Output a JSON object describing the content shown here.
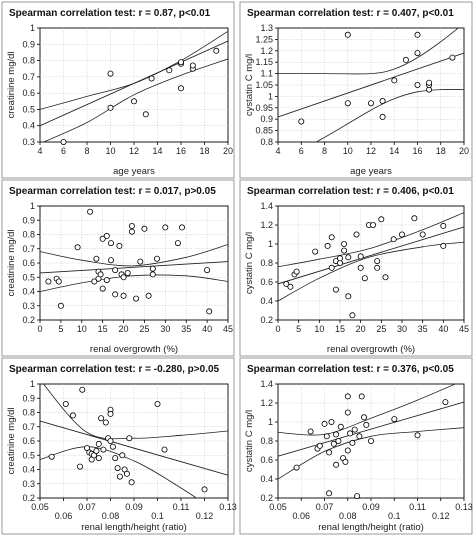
{
  "chart_data": [
    {
      "type": "scatter",
      "title": "Spearman correlation test: r = 0.87, p<0.01",
      "xlabel": "age years",
      "ylabel": "creatinine mg/dl",
      "xlim": [
        4,
        20
      ],
      "ylim": [
        0.3,
        1.0
      ],
      "xticks": [
        4,
        6,
        8,
        10,
        12,
        14,
        16,
        18,
        20
      ],
      "yticks": [
        0.3,
        0.4,
        0.5,
        0.6,
        0.7,
        0.8,
        0.9,
        1.0
      ],
      "grid": true,
      "series": [
        {
          "x": [
            6,
            10,
            10,
            12,
            13,
            13.5,
            15,
            16,
            16,
            16,
            17,
            17,
            19
          ],
          "y": [
            0.3,
            0.51,
            0.72,
            0.55,
            0.47,
            0.69,
            0.74,
            0.63,
            0.78,
            0.79,
            0.75,
            0.77,
            0.86
          ]
        }
      ],
      "fit": {
        "x0": 4,
        "y0": 0.4,
        "x1": 20,
        "y1": 0.92
      },
      "ci_upper": [
        [
          4,
          0.5
        ],
        [
          8,
          0.58
        ],
        [
          12,
          0.66
        ],
        [
          16,
          0.8
        ],
        [
          20,
          0.98
        ]
      ],
      "ci_lower": [
        [
          4,
          0.29
        ],
        [
          8,
          0.42
        ],
        [
          12,
          0.59
        ],
        [
          16,
          0.71
        ],
        [
          20,
          0.81
        ]
      ]
    },
    {
      "type": "scatter",
      "title": "Spearman correlation test: r = 0.407, p<0.01",
      "xlabel": "age years",
      "ylabel": "cystatin C mg/l",
      "xlim": [
        4,
        20
      ],
      "ylim": [
        0.8,
        1.3
      ],
      "xticks": [
        4,
        6,
        8,
        10,
        12,
        14,
        16,
        18,
        20
      ],
      "yticks": [
        0.8,
        0.85,
        0.9,
        0.95,
        1.0,
        1.05,
        1.1,
        1.15,
        1.2,
        1.25,
        1.3
      ],
      "grid": true,
      "series": [
        {
          "x": [
            6,
            10,
            10,
            12,
            13,
            13,
            14,
            15,
            16,
            16,
            16,
            17,
            17,
            17,
            19
          ],
          "y": [
            0.89,
            0.97,
            1.27,
            0.97,
            0.91,
            0.98,
            1.07,
            1.16,
            1.05,
            1.19,
            1.27,
            1.03,
            1.05,
            1.06,
            1.17
          ]
        }
      ],
      "fit": {
        "x0": 4,
        "y0": 0.91,
        "x1": 20,
        "y1": 1.19
      },
      "ci_upper": [
        [
          4,
          1.1
        ],
        [
          8,
          1.1
        ],
        [
          12,
          1.1
        ],
        [
          14,
          1.12
        ],
        [
          16,
          1.17
        ],
        [
          18,
          1.24
        ],
        [
          20,
          1.32
        ]
      ],
      "ci_lower": [
        [
          4,
          0.71
        ],
        [
          8,
          0.82
        ],
        [
          12,
          0.94
        ],
        [
          14,
          0.99
        ],
        [
          16,
          1.02
        ],
        [
          18,
          1.03
        ],
        [
          20,
          1.03
        ]
      ]
    },
    {
      "type": "scatter",
      "title": "Spearman correlation test: r = 0.017, p>0.05",
      "xlabel": "renal overgrowth (%)",
      "ylabel": "creatinine mg/dl",
      "xlim": [
        0,
        45
      ],
      "ylim": [
        0.2,
        1.0
      ],
      "xticks": [
        0,
        5,
        10,
        15,
        20,
        25,
        30,
        35,
        40,
        45
      ],
      "yticks": [
        0.2,
        0.3,
        0.4,
        0.5,
        0.6,
        0.7,
        0.8,
        0.9,
        1.0
      ],
      "grid": true,
      "series": [
        {
          "x": [
            2,
            4,
            4.5,
            5,
            9,
            12,
            13,
            13.5,
            14,
            14,
            14.5,
            15,
            15,
            16,
            16,
            17,
            17,
            18,
            18,
            19,
            19.5,
            20,
            20,
            21,
            22,
            22,
            23,
            24,
            25,
            26,
            27,
            27,
            28,
            30,
            33,
            34,
            40,
            40.5
          ],
          "y": [
            0.47,
            0.49,
            0.47,
            0.3,
            0.71,
            0.96,
            0.47,
            0.63,
            0.49,
            0.54,
            0.52,
            0.77,
            0.42,
            0.79,
            0.48,
            0.74,
            0.62,
            0.55,
            0.38,
            0.72,
            0.52,
            0.37,
            0.5,
            0.53,
            0.86,
            0.82,
            0.35,
            0.61,
            0.84,
            0.37,
            0.52,
            0.56,
            0.63,
            0.85,
            0.74,
            0.85,
            0.55,
            0.26
          ]
        }
      ],
      "fit": {
        "x0": 0,
        "y0": 0.53,
        "x1": 45,
        "y1": 0.61
      },
      "ci_upper": [
        [
          0,
          0.68
        ],
        [
          10,
          0.62
        ],
        [
          22,
          0.58
        ],
        [
          35,
          0.64
        ],
        [
          45,
          0.73
        ]
      ],
      "ci_lower": [
        [
          0,
          0.4
        ],
        [
          10,
          0.46
        ],
        [
          22,
          0.51
        ],
        [
          35,
          0.51
        ],
        [
          45,
          0.47
        ]
      ]
    },
    {
      "type": "scatter",
      "title": "Spearman correlation test: r = 0.406, p<0.01",
      "xlabel": "renal overgrowth (%)",
      "ylabel": "cystatin C mg/l",
      "xlim": [
        0,
        45
      ],
      "ylim": [
        0.2,
        1.4
      ],
      "xticks": [
        0,
        5,
        10,
        15,
        20,
        25,
        30,
        35,
        40,
        45
      ],
      "yticks": [
        0.2,
        0.4,
        0.6,
        0.8,
        1.0,
        1.2,
        1.4
      ],
      "grid": true,
      "series": [
        {
          "x": [
            2,
            3,
            4,
            4.5,
            9,
            12,
            13,
            13,
            14,
            14,
            15,
            15,
            16,
            16,
            17,
            17,
            18,
            19,
            20,
            20,
            21,
            22,
            23,
            24,
            24,
            25,
            26,
            28,
            30,
            33,
            35,
            40,
            40
          ],
          "y": [
            0.58,
            0.55,
            0.68,
            0.71,
            0.92,
            0.98,
            0.75,
            1.07,
            0.82,
            0.52,
            0.8,
            0.85,
            1.0,
            0.93,
            0.86,
            0.45,
            0.25,
            1.1,
            0.75,
            0.87,
            0.64,
            1.2,
            1.2,
            0.82,
            0.75,
            1.26,
            0.65,
            1.05,
            1.1,
            1.27,
            1.1,
            1.19,
            0.98
          ]
        }
      ],
      "fit": {
        "x0": 0,
        "y0": 0.58,
        "x1": 45,
        "y1": 1.18
      },
      "ci_upper": [
        [
          0,
          0.76
        ],
        [
          10,
          0.84
        ],
        [
          22,
          0.95
        ],
        [
          35,
          1.15
        ],
        [
          45,
          1.33
        ]
      ],
      "ci_lower": [
        [
          0,
          0.4
        ],
        [
          10,
          0.64
        ],
        [
          22,
          0.86
        ],
        [
          35,
          0.97
        ],
        [
          45,
          1.02
        ]
      ]
    },
    {
      "type": "scatter",
      "title": "Spearman correlation test: r = -0.280, p>0.05",
      "xlabel": "renal length/height (ratio)",
      "ylabel": "creatinine mg/dl",
      "xlim": [
        0.05,
        0.13
      ],
      "ylim": [
        0.2,
        1.0
      ],
      "xticks": [
        0.05,
        0.06,
        0.07,
        0.08,
        0.09,
        0.1,
        0.11,
        0.12,
        0.13
      ],
      "yticks": [
        0.2,
        0.3,
        0.4,
        0.5,
        0.6,
        0.7,
        0.8,
        0.9,
        1.0
      ],
      "grid": true,
      "series": [
        {
          "x": [
            0.055,
            0.061,
            0.064,
            0.067,
            0.068,
            0.07,
            0.071,
            0.072,
            0.072,
            0.073,
            0.074,
            0.075,
            0.075,
            0.076,
            0.077,
            0.078,
            0.079,
            0.08,
            0.08,
            0.08,
            0.081,
            0.082,
            0.083,
            0.084,
            0.085,
            0.086,
            0.087,
            0.088,
            0.089,
            0.1,
            0.103,
            0.12
          ],
          "y": [
            0.49,
            0.86,
            0.78,
            0.42,
            0.96,
            0.55,
            0.52,
            0.51,
            0.47,
            0.5,
            0.53,
            0.58,
            0.48,
            0.76,
            0.54,
            0.73,
            0.62,
            0.82,
            0.79,
            0.6,
            0.56,
            0.48,
            0.41,
            0.35,
            0.5,
            0.4,
            0.37,
            0.62,
            0.31,
            0.86,
            0.54,
            0.26
          ]
        }
      ],
      "fit": {
        "x0": 0.05,
        "y0": 0.74,
        "x1": 0.13,
        "y1": 0.36
      },
      "ci_upper": [
        [
          0.05,
          1.03
        ],
        [
          0.07,
          0.66
        ],
        [
          0.09,
          0.62
        ],
        [
          0.11,
          0.64
        ],
        [
          0.13,
          0.67
        ]
      ],
      "ci_lower": [
        [
          0.05,
          0.47
        ],
        [
          0.07,
          0.56
        ],
        [
          0.09,
          0.46
        ],
        [
          0.11,
          0.27
        ],
        [
          0.13,
          0.05
        ]
      ]
    },
    {
      "type": "scatter",
      "title": "Spearman correlation test: r = 0.376, p<0.05",
      "xlabel": "renal length/height (ratio)",
      "ylabel": "cystatin C mg/l",
      "xlim": [
        0.05,
        0.13
      ],
      "ylim": [
        0.2,
        1.4
      ],
      "xticks": [
        0.05,
        0.06,
        0.07,
        0.08,
        0.09,
        0.1,
        0.11,
        0.12,
        0.13
      ],
      "yticks": [
        0.2,
        0.4,
        0.6,
        0.8,
        1.0,
        1.2,
        1.4
      ],
      "grid": true,
      "series": [
        {
          "x": [
            0.058,
            0.064,
            0.067,
            0.068,
            0.07,
            0.071,
            0.072,
            0.072,
            0.073,
            0.074,
            0.075,
            0.075,
            0.076,
            0.077,
            0.078,
            0.079,
            0.08,
            0.08,
            0.08,
            0.081,
            0.082,
            0.083,
            0.084,
            0.085,
            0.086,
            0.087,
            0.088,
            0.09,
            0.1,
            0.11,
            0.122
          ],
          "y": [
            0.52,
            0.9,
            0.72,
            0.75,
            0.98,
            0.85,
            0.25,
            0.68,
            1.0,
            0.77,
            0.55,
            0.87,
            0.8,
            0.95,
            0.62,
            0.58,
            1.27,
            1.1,
            0.7,
            0.88,
            0.78,
            0.92,
            0.22,
            0.85,
            1.27,
            1.05,
            0.97,
            0.8,
            1.03,
            0.86,
            1.21
          ]
        }
      ],
      "fit": {
        "x0": 0.05,
        "y0": 0.64,
        "x1": 0.13,
        "y1": 1.21
      },
      "ci_upper": [
        [
          0.05,
          0.89
        ],
        [
          0.07,
          0.87
        ],
        [
          0.09,
          1.04
        ],
        [
          0.11,
          1.23
        ],
        [
          0.13,
          1.44
        ]
      ],
      "ci_lower": [
        [
          0.05,
          0.4
        ],
        [
          0.07,
          0.69
        ],
        [
          0.09,
          0.85
        ],
        [
          0.11,
          0.9
        ],
        [
          0.13,
          0.94
        ]
      ]
    }
  ]
}
